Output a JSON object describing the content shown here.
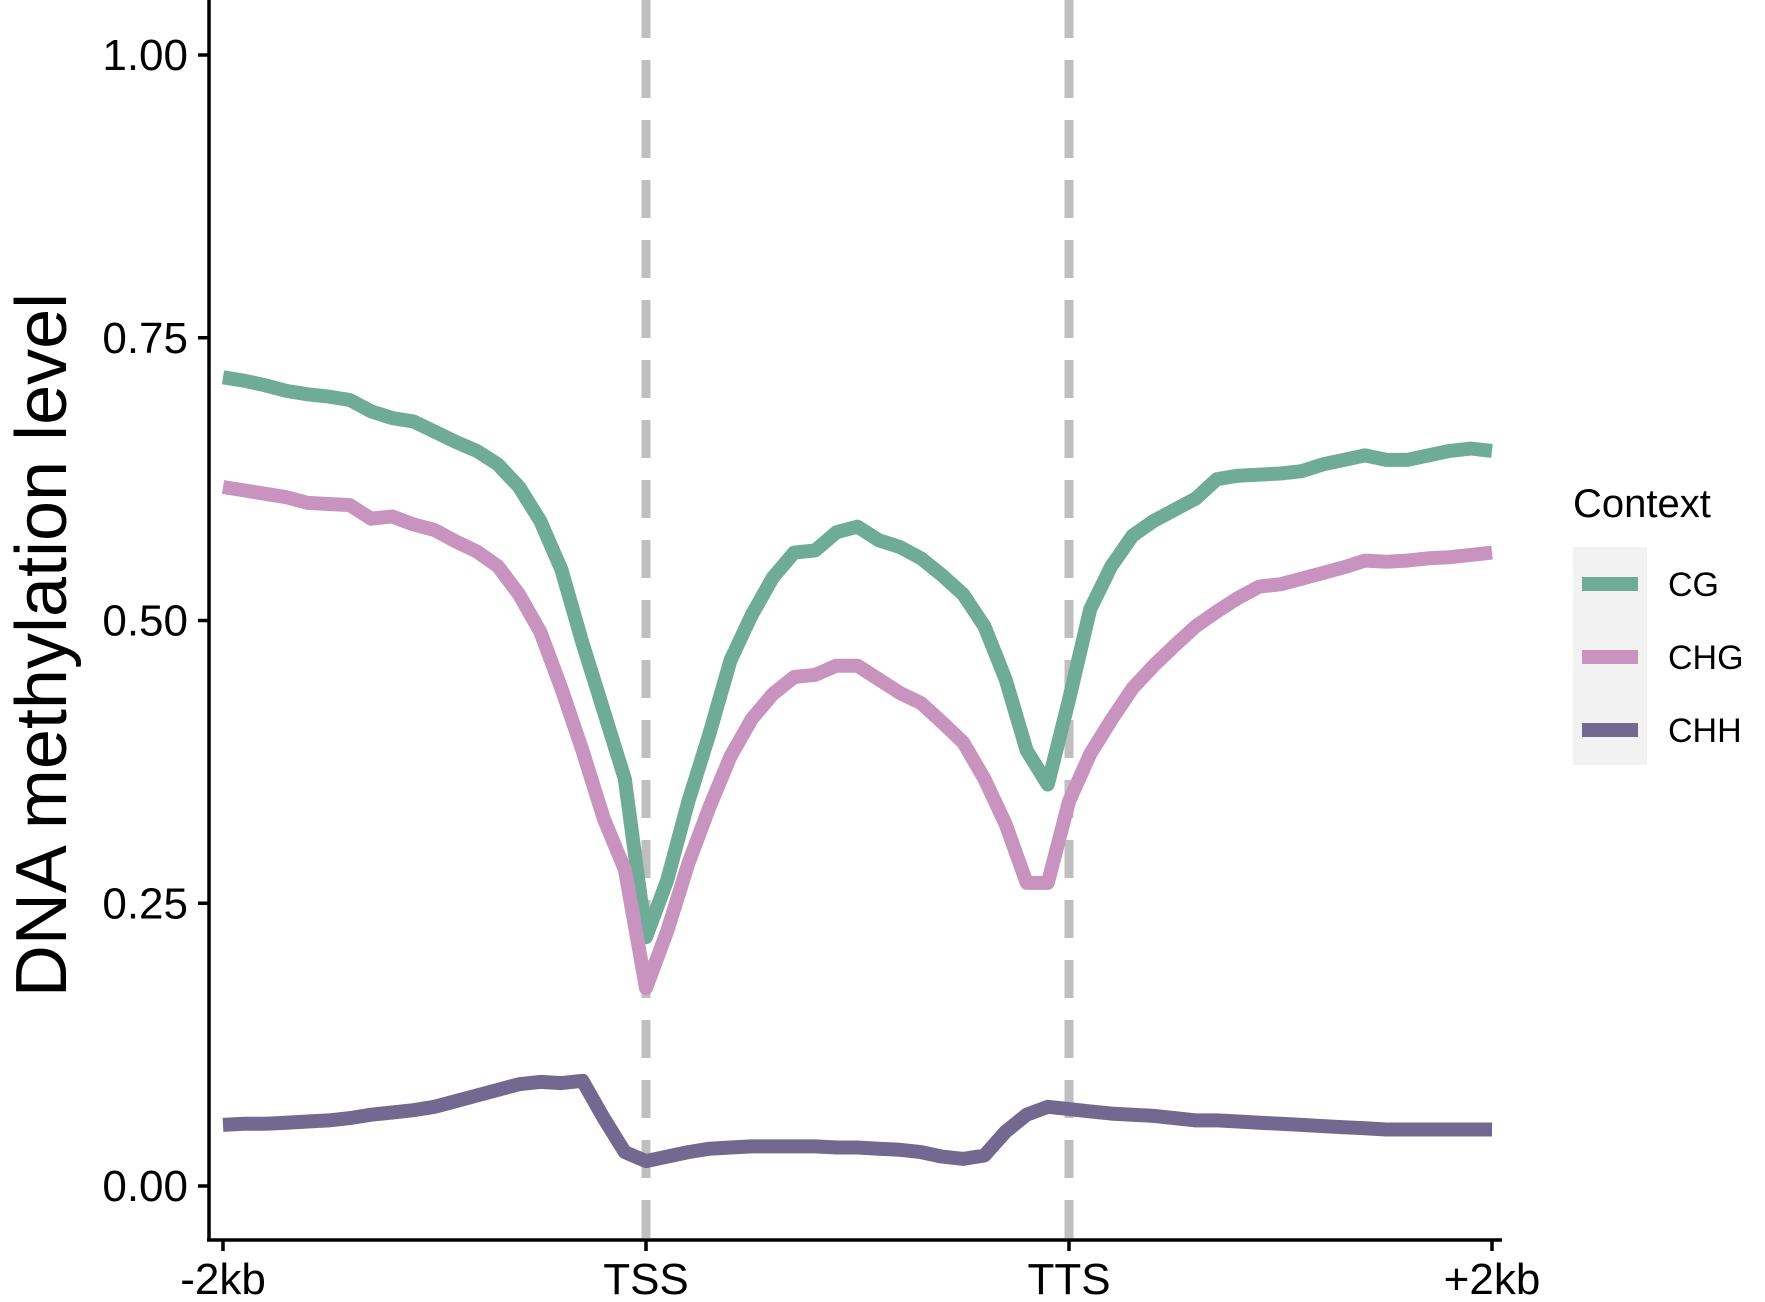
{
  "chart_data": {
    "type": "line",
    "title": "",
    "xlabel": "",
    "ylabel": "DNA methylation level",
    "ylim": [
      0,
      1
    ],
    "x_ticks": [
      "-2kb",
      "TSS",
      "TTS",
      "+2kb"
    ],
    "y_ticks": [
      "0.00",
      "0.25",
      "0.50",
      "0.75",
      "1.00"
    ],
    "reference_lines": [
      "TSS",
      "TTS"
    ],
    "legend": {
      "title": "Context",
      "placement": "right"
    },
    "x_description": "Position along gene: -2kb upstream (0) to TSS (20), gene body (20-40) to TTS (40), then to +2kb downstream (60)",
    "x": [
      0,
      1,
      2,
      3,
      4,
      5,
      6,
      7,
      8,
      9,
      10,
      11,
      12,
      13,
      14,
      15,
      16,
      17,
      18,
      19,
      20,
      21,
      22,
      23,
      24,
      25,
      26,
      27,
      28,
      29,
      30,
      31,
      32,
      33,
      34,
      35,
      36,
      37,
      38,
      39,
      40,
      41,
      42,
      43,
      44,
      45,
      46,
      47,
      48,
      49,
      50,
      51,
      52,
      53,
      54,
      55,
      56,
      57,
      58,
      59,
      60
    ],
    "series": [
      {
        "name": "CG",
        "color": "#6fac98",
        "values": [
          0.715,
          0.712,
          0.708,
          0.703,
          0.7,
          0.698,
          0.695,
          0.685,
          0.679,
          0.676,
          0.667,
          0.658,
          0.65,
          0.638,
          0.618,
          0.588,
          0.545,
          0.48,
          0.42,
          0.36,
          0.22,
          0.27,
          0.34,
          0.4,
          0.465,
          0.505,
          0.538,
          0.56,
          0.562,
          0.578,
          0.583,
          0.571,
          0.565,
          0.555,
          0.54,
          0.523,
          0.495,
          0.448,
          0.385,
          0.355,
          0.43,
          0.51,
          0.548,
          0.575,
          0.588,
          0.598,
          0.608,
          0.625,
          0.628,
          0.629,
          0.63,
          0.632,
          0.638,
          0.642,
          0.646,
          0.642,
          0.642,
          0.646,
          0.65,
          0.652,
          0.65
        ]
      },
      {
        "name": "CHG",
        "color": "#c893bf",
        "values": [
          0.618,
          0.615,
          0.612,
          0.609,
          0.604,
          0.603,
          0.602,
          0.59,
          0.592,
          0.585,
          0.58,
          0.57,
          0.561,
          0.548,
          0.523,
          0.49,
          0.44,
          0.385,
          0.325,
          0.28,
          0.175,
          0.225,
          0.285,
          0.335,
          0.38,
          0.413,
          0.435,
          0.45,
          0.452,
          0.46,
          0.46,
          0.448,
          0.436,
          0.427,
          0.41,
          0.392,
          0.36,
          0.32,
          0.268,
          0.268,
          0.34,
          0.382,
          0.412,
          0.44,
          0.46,
          0.478,
          0.495,
          0.508,
          0.52,
          0.53,
          0.532,
          0.537,
          0.542,
          0.547,
          0.553,
          0.552,
          0.553,
          0.555,
          0.556,
          0.558,
          0.56
        ]
      },
      {
        "name": "CHH",
        "color": "#736890",
        "values": [
          0.054,
          0.055,
          0.055,
          0.056,
          0.057,
          0.058,
          0.06,
          0.063,
          0.065,
          0.067,
          0.07,
          0.075,
          0.08,
          0.085,
          0.09,
          0.092,
          0.091,
          0.093,
          0.06,
          0.03,
          0.022,
          0.026,
          0.03,
          0.033,
          0.034,
          0.035,
          0.035,
          0.035,
          0.035,
          0.034,
          0.034,
          0.033,
          0.032,
          0.03,
          0.026,
          0.024,
          0.027,
          0.048,
          0.063,
          0.07,
          0.068,
          0.066,
          0.064,
          0.063,
          0.062,
          0.06,
          0.058,
          0.058,
          0.057,
          0.056,
          0.055,
          0.054,
          0.053,
          0.052,
          0.051,
          0.05,
          0.05,
          0.05,
          0.05,
          0.05,
          0.05
        ]
      }
    ]
  }
}
